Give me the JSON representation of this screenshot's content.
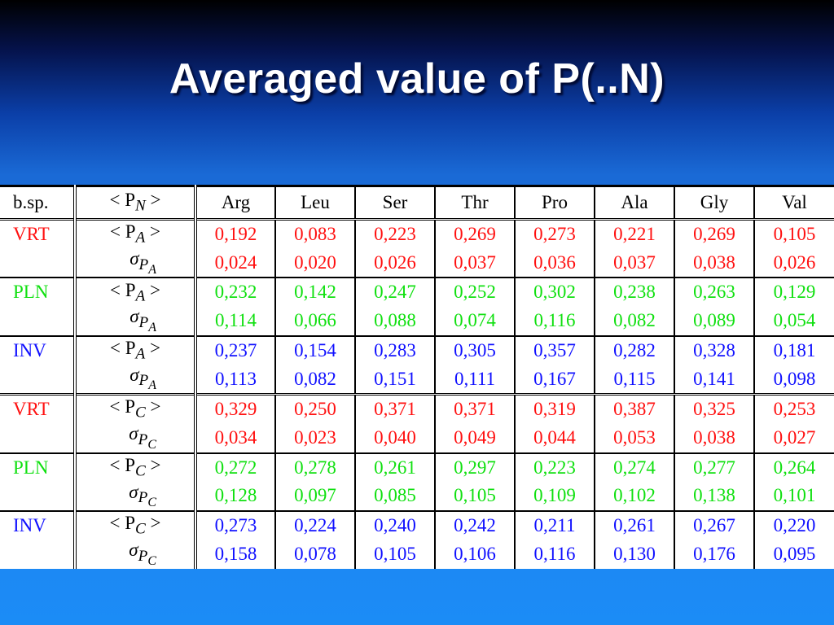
{
  "title": "Averaged value of P(..N)",
  "colors": {
    "VRT": "#ff1010",
    "PLN": "#10e010",
    "INV": "#1010ff"
  },
  "header": [
    "b.sp.",
    "< P_N >",
    "Arg",
    "Leu",
    "Ser",
    "Thr",
    "Pro",
    "Ala",
    "Gly",
    "Val"
  ],
  "header_display": {
    "col1": "< P",
    "col1_sub": "N",
    "col1_end": " >"
  },
  "blocks": [
    {
      "measure": "A",
      "groups": [
        {
          "species": "VRT",
          "mean_label": "< P",
          "sub": "A",
          "sigma_label": "σ",
          "sigma_sub": "P",
          "sigma_subsub": "A",
          "mean": [
            "0,192",
            "0,083",
            "0,223",
            "0,269",
            "0,273",
            "0,221",
            "0,269",
            "0,105"
          ],
          "sigma": [
            "0,024",
            "0,020",
            "0,026",
            "0,037",
            "0,036",
            "0,037",
            "0,038",
            "0,026"
          ]
        },
        {
          "species": "PLN",
          "mean_label": "< P",
          "sub": "A",
          "sigma_label": "σ",
          "sigma_sub": "P",
          "sigma_subsub": "A",
          "mean": [
            "0,232",
            "0,142",
            "0,247",
            "0,252",
            "0,302",
            "0,238",
            "0,263",
            "0,129"
          ],
          "sigma": [
            "0,114",
            "0,066",
            "0,088",
            "0,074",
            "0,116",
            "0,082",
            "0,089",
            "0,054"
          ]
        },
        {
          "species": "INV",
          "mean_label": "< P",
          "sub": "A",
          "sigma_label": "σ",
          "sigma_sub": "P",
          "sigma_subsub": "A",
          "mean": [
            "0,237",
            "0,154",
            "0,283",
            "0,305",
            "0,357",
            "0,282",
            "0,328",
            "0,181"
          ],
          "sigma": [
            "0,113",
            "0,082",
            "0,151",
            "0,111",
            "0,167",
            "0,115",
            "0,141",
            "0,098"
          ]
        }
      ]
    },
    {
      "measure": "C",
      "groups": [
        {
          "species": "VRT",
          "mean_label": "< P",
          "sub": "C",
          "sigma_label": "σ",
          "sigma_sub": "P",
          "sigma_subsub": "C",
          "mean": [
            "0,329",
            "0,250",
            "0,371",
            "0,371",
            "0,319",
            "0,387",
            "0,325",
            "0,253"
          ],
          "sigma": [
            "0,034",
            "0,023",
            "0,040",
            "0,049",
            "0,044",
            "0,053",
            "0,038",
            "0,027"
          ]
        },
        {
          "species": "PLN",
          "mean_label": "< P",
          "sub": "C",
          "sigma_label": "σ",
          "sigma_sub": "P",
          "sigma_subsub": "C",
          "mean": [
            "0,272",
            "0,278",
            "0,261",
            "0,297",
            "0,223",
            "0,274",
            "0,277",
            "0,264"
          ],
          "sigma": [
            "0,128",
            "0,097",
            "0,085",
            "0,105",
            "0,109",
            "0,102",
            "0,138",
            "0,101"
          ]
        },
        {
          "species": "INV",
          "mean_label": "< P",
          "sub": "C",
          "sigma_label": "σ",
          "sigma_sub": "P",
          "sigma_subsub": "C",
          "mean": [
            "0,273",
            "0,224",
            "0,240",
            "0,242",
            "0,211",
            "0,261",
            "0,267",
            "0,220"
          ],
          "sigma": [
            "0,158",
            "0,078",
            "0,105",
            "0,106",
            "0,116",
            "0,130",
            "0,176",
            "0,095"
          ]
        }
      ]
    }
  ]
}
